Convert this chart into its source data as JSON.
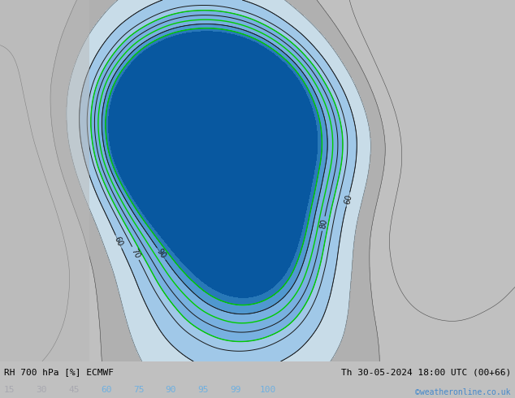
{
  "title_left": "RH 700 hPa [%] ECMWF",
  "title_right": "Th 30-05-2024 18:00 UTC (00+66)",
  "credit": "©weatheronline.co.uk",
  "colorbar_levels": [
    15,
    30,
    45,
    60,
    75,
    90,
    95,
    99,
    100
  ],
  "colorbar_label_colors": [
    "#a8a8b0",
    "#a8a8b0",
    "#a8a8b0",
    "#70b0e0",
    "#70b0e0",
    "#70b0e0",
    "#70b0e0",
    "#70b0e0",
    "#70b0e0"
  ],
  "fill_colors": [
    "#c0c0c0",
    "#b0b0b0",
    "#c8dce8",
    "#a0c8e8",
    "#78b0e0",
    "#5098d0",
    "#2878b8",
    "#0858a0"
  ],
  "contour_line_color": "#1a1a1a",
  "green_line_color": "#00cc00",
  "bg_color": "#c0c0c0",
  "bottom_bar_color": "#ffffff",
  "title_left_color": "#000000",
  "title_right_color": "#000000",
  "credit_color": "#4488cc",
  "fig_width": 6.34,
  "fig_height": 4.9,
  "dpi": 100
}
